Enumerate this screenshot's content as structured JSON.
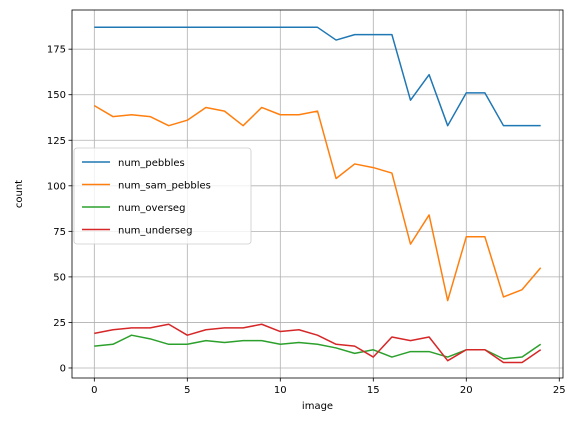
{
  "chart_data": {
    "type": "line",
    "title": "",
    "xlabel": "image",
    "ylabel": "count",
    "xlim": [
      -1.2,
      25.2
    ],
    "ylim": [
      -5.5,
      196.5
    ],
    "xticks": [
      0,
      5,
      10,
      15,
      20,
      25
    ],
    "yticks": [
      0,
      25,
      50,
      75,
      100,
      125,
      150,
      175
    ],
    "grid": true,
    "legend": "center-left",
    "x": [
      0,
      1,
      2,
      3,
      4,
      5,
      6,
      7,
      8,
      9,
      10,
      11,
      12,
      13,
      14,
      15,
      16,
      17,
      18,
      19,
      20,
      21,
      22,
      23,
      24
    ],
    "series": [
      {
        "name": "num_pebbles",
        "color": "#1f77b4",
        "values": [
          187,
          187,
          187,
          187,
          187,
          187,
          187,
          187,
          187,
          187,
          187,
          187,
          187,
          180,
          183,
          183,
          183,
          147,
          161,
          133,
          151,
          151,
          133,
          133,
          133
        ]
      },
      {
        "name": "num_sam_pebbles",
        "color": "#ff7f0e",
        "values": [
          144,
          138,
          139,
          138,
          133,
          136,
          143,
          141,
          133,
          143,
          139,
          139,
          141,
          104,
          112,
          110,
          107,
          68,
          84,
          37,
          72,
          72,
          39,
          43,
          55
        ]
      },
      {
        "name": "num_overseg",
        "color": "#2ca02c",
        "values": [
          12,
          13,
          18,
          16,
          13,
          13,
          15,
          14,
          15,
          15,
          13,
          14,
          13,
          11,
          8,
          10,
          6,
          9,
          9,
          6,
          10,
          10,
          5,
          6,
          13
        ]
      },
      {
        "name": "num_underseg",
        "color": "#d62728",
        "values": [
          19,
          21,
          22,
          22,
          24,
          18,
          21,
          22,
          22,
          24,
          20,
          21,
          18,
          13,
          12,
          6,
          17,
          15,
          17,
          4,
          10,
          10,
          3,
          3,
          10
        ]
      }
    ]
  }
}
